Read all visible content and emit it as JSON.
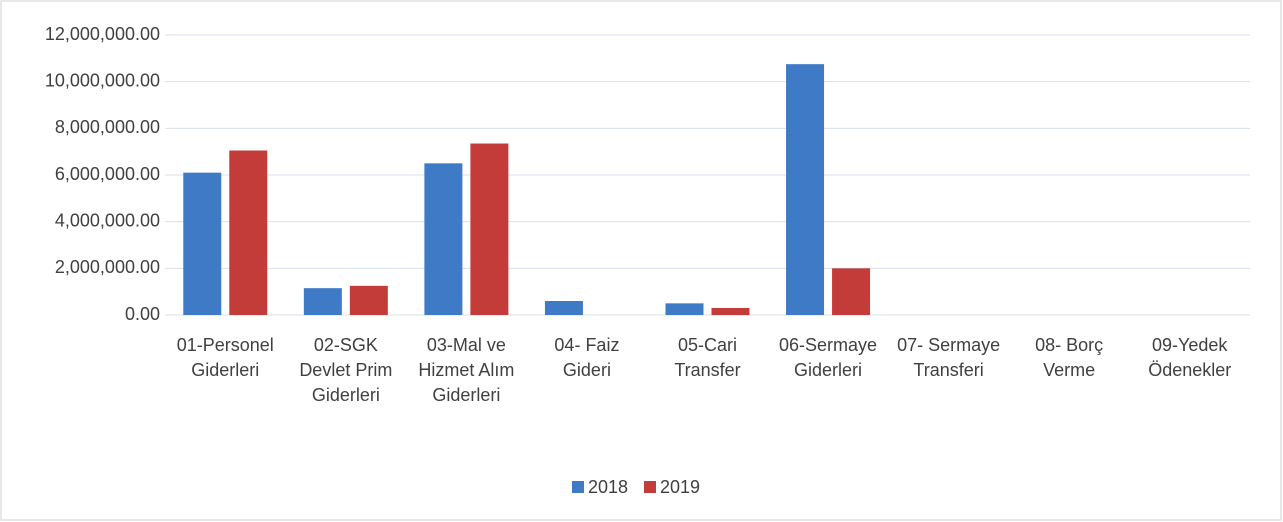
{
  "chart_data": {
    "type": "bar",
    "categories": [
      "01-Personel Giderleri",
      "02-SGK Devlet Prim Giderleri",
      "03-Mal ve Hizmet Alım Giderleri",
      "04- Faiz Gideri",
      "05-Cari Transfer",
      "06-Sermaye Giderleri",
      "07- Sermaye Transferi",
      "08- Borç Verme",
      "09-Yedek Ödenekler"
    ],
    "series": [
      {
        "name": "2018",
        "color": "#3f7ac6",
        "values": [
          6100000,
          1150000,
          6500000,
          600000,
          500000,
          10750000,
          0,
          0,
          0
        ]
      },
      {
        "name": "2019",
        "color": "#c43c3a",
        "values": [
          7050000,
          1250000,
          7350000,
          0,
          300000,
          2000000,
          0,
          0,
          0
        ]
      }
    ],
    "ylim": [
      0,
      12000000
    ],
    "yticks": [
      {
        "value": 0,
        "label": "0.00"
      },
      {
        "value": 2000000,
        "label": "2,000,000.00"
      },
      {
        "value": 4000000,
        "label": "4,000,000.00"
      },
      {
        "value": 6000000,
        "label": "6,000,000.00"
      },
      {
        "value": 8000000,
        "label": "8,000,000.00"
      },
      {
        "value": 10000000,
        "label": "10,000,000.00"
      },
      {
        "value": 12000000,
        "label": "12,000,000.00"
      }
    ],
    "grid": true,
    "legend": "bottom"
  }
}
